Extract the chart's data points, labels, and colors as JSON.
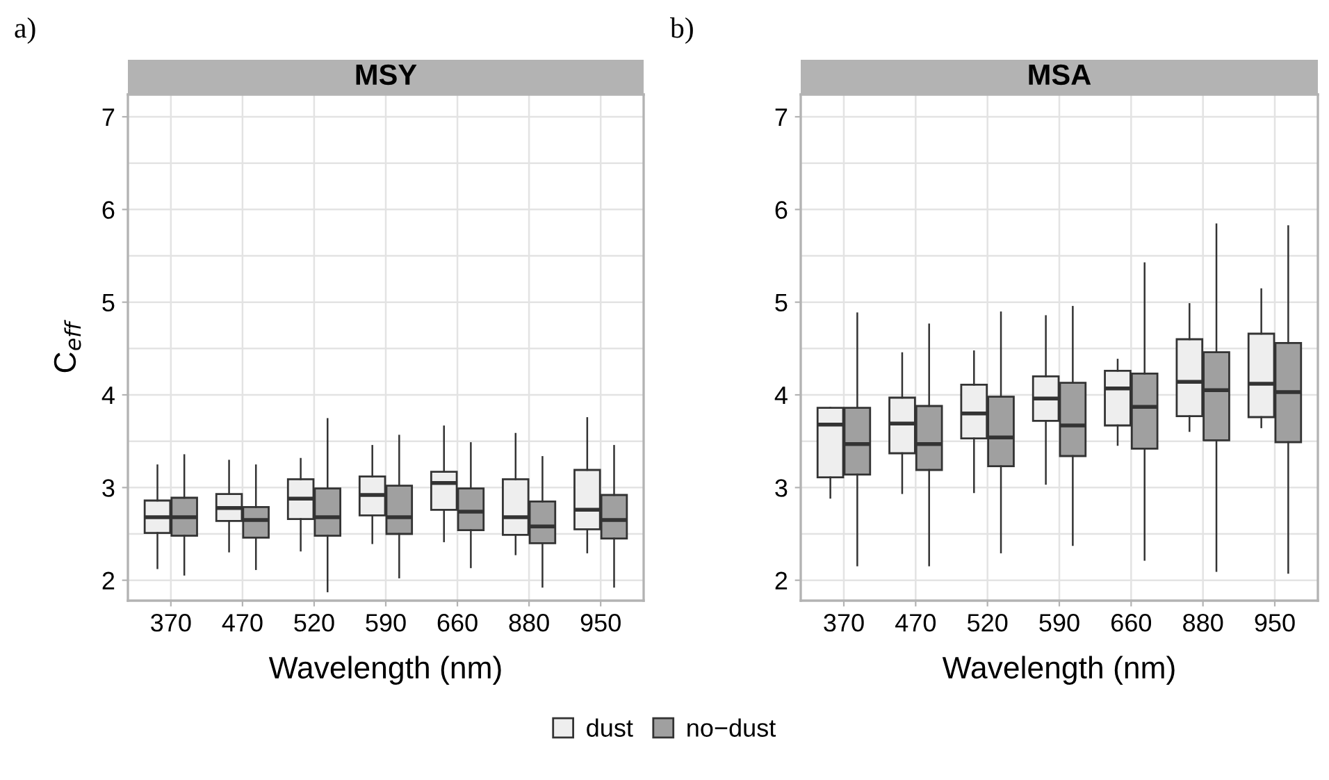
{
  "chart_data": [
    {
      "type": "box",
      "title": "MSY",
      "xlabel": "Wavelength (nm)",
      "ylabel": "C$_{eff}$",
      "categories": [
        "370",
        "470",
        "520",
        "590",
        "660",
        "880",
        "950"
      ],
      "ylim": [
        1.78,
        7.24
      ],
      "yticks": [
        2,
        3,
        4,
        5,
        6,
        7
      ],
      "grid": true,
      "legend": "bottom",
      "annotations": [
        "a)"
      ],
      "series": [
        {
          "name": "dust",
          "color": "#eeeeee",
          "boxes": [
            {
              "low": 2.13,
              "q1": 2.51,
              "median": 2.68,
              "q3": 2.86,
              "high": 3.24
            },
            {
              "low": 2.31,
              "q1": 2.64,
              "median": 2.78,
              "q3": 2.93,
              "high": 3.29
            },
            {
              "low": 2.32,
              "q1": 2.66,
              "median": 2.88,
              "q3": 3.09,
              "high": 3.31
            },
            {
              "low": 2.4,
              "q1": 2.7,
              "median": 2.92,
              "q3": 3.12,
              "high": 3.45
            },
            {
              "low": 2.42,
              "q1": 2.76,
              "median": 3.05,
              "q3": 3.17,
              "high": 3.66
            },
            {
              "low": 2.28,
              "q1": 2.49,
              "median": 2.68,
              "q3": 3.09,
              "high": 3.58
            },
            {
              "low": 2.3,
              "q1": 2.55,
              "median": 2.76,
              "q3": 3.19,
              "high": 3.75
            }
          ]
        },
        {
          "name": "no−dust",
          "color": "#a0a0a0",
          "boxes": [
            {
              "low": 2.06,
              "q1": 2.48,
              "median": 2.68,
              "q3": 2.89,
              "high": 3.35
            },
            {
              "low": 2.12,
              "q1": 2.46,
              "median": 2.65,
              "q3": 2.79,
              "high": 3.24
            },
            {
              "low": 1.88,
              "q1": 2.48,
              "median": 2.68,
              "q3": 2.99,
              "high": 3.74
            },
            {
              "low": 2.03,
              "q1": 2.5,
              "median": 2.68,
              "q3": 3.02,
              "high": 3.56
            },
            {
              "low": 2.14,
              "q1": 2.54,
              "median": 2.74,
              "q3": 2.99,
              "high": 3.48
            },
            {
              "low": 1.93,
              "q1": 2.4,
              "median": 2.58,
              "q3": 2.85,
              "high": 3.33
            },
            {
              "low": 1.93,
              "q1": 2.45,
              "median": 2.65,
              "q3": 2.92,
              "high": 3.45
            }
          ]
        }
      ]
    },
    {
      "type": "box",
      "title": "MSA",
      "xlabel": "Wavelength (nm)",
      "categories": [
        "370",
        "470",
        "520",
        "590",
        "660",
        "880",
        "950"
      ],
      "ylim": [
        1.78,
        7.24
      ],
      "yticks": [
        2,
        3,
        4,
        5,
        6,
        7
      ],
      "grid": true,
      "annotations": [
        "b)"
      ],
      "series": [
        {
          "name": "dust",
          "color": "#eeeeee",
          "boxes": [
            {
              "low": 2.89,
              "q1": 3.11,
              "median": 3.68,
              "q3": 3.86,
              "high": 3.86
            },
            {
              "low": 2.94,
              "q1": 3.37,
              "median": 3.69,
              "q3": 3.97,
              "high": 4.45
            },
            {
              "low": 2.95,
              "q1": 3.53,
              "median": 3.8,
              "q3": 4.11,
              "high": 4.47
            },
            {
              "low": 3.04,
              "q1": 3.72,
              "median": 3.96,
              "q3": 4.2,
              "high": 4.85
            },
            {
              "low": 3.46,
              "q1": 3.67,
              "median": 4.07,
              "q3": 4.26,
              "high": 4.38
            },
            {
              "low": 3.61,
              "q1": 3.77,
              "median": 4.14,
              "q3": 4.6,
              "high": 4.98
            },
            {
              "low": 3.65,
              "q1": 3.76,
              "median": 4.12,
              "q3": 4.66,
              "high": 5.14
            }
          ]
        },
        {
          "name": "no−dust",
          "color": "#a0a0a0",
          "boxes": [
            {
              "low": 2.16,
              "q1": 3.14,
              "median": 3.47,
              "q3": 3.86,
              "high": 4.88
            },
            {
              "low": 2.16,
              "q1": 3.19,
              "median": 3.47,
              "q3": 3.88,
              "high": 4.76
            },
            {
              "low": 2.3,
              "q1": 3.23,
              "median": 3.54,
              "q3": 3.98,
              "high": 4.89
            },
            {
              "low": 2.38,
              "q1": 3.34,
              "median": 3.67,
              "q3": 4.13,
              "high": 4.95
            },
            {
              "low": 2.22,
              "q1": 3.42,
              "median": 3.87,
              "q3": 4.23,
              "high": 5.42
            },
            {
              "low": 2.1,
              "q1": 3.51,
              "median": 4.05,
              "q3": 4.46,
              "high": 5.84
            },
            {
              "low": 2.08,
              "q1": 3.49,
              "median": 4.03,
              "q3": 4.56,
              "high": 5.82
            }
          ]
        }
      ]
    }
  ]
}
